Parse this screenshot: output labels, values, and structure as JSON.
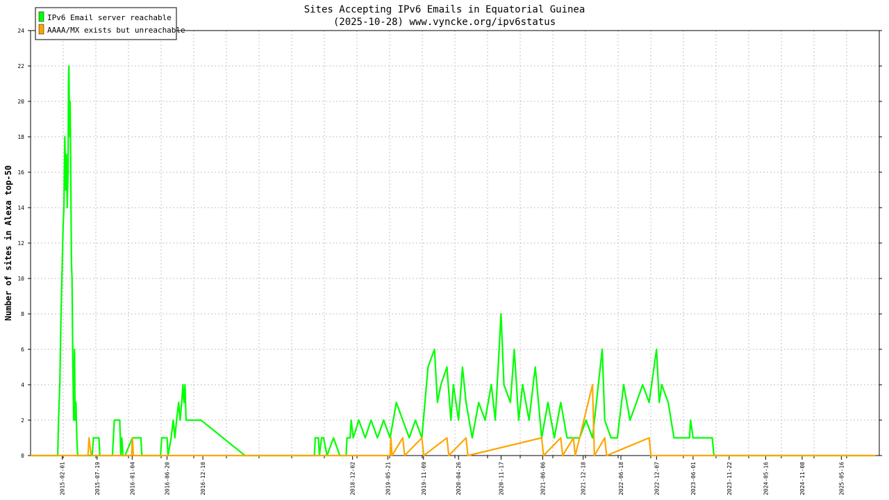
{
  "chart_data": {
    "type": "line",
    "title": "Sites Accepting IPv6 Emails in Equatorial Guinea",
    "subtitle": "(2025-10-28) www.vyncke.org/ipv6status",
    "ylabel": "Number of sites in Alexa top-50",
    "xlabel": "",
    "ylim": [
      0,
      24
    ],
    "yticks": [
      0,
      2,
      4,
      6,
      8,
      10,
      12,
      14,
      16,
      18,
      20,
      22,
      24
    ],
    "xlim": [
      "2014-09-01",
      "2025-11-15"
    ],
    "xtick_labels": [
      "2015-02-01",
      "2015-07-19",
      "2016-01-04",
      "2016-06-20",
      "2016-12-10",
      "2018-12-02",
      "2019-05-21",
      "2019-11-09",
      "2020-04-26",
      "2020-11-17",
      "2021-06-06",
      "2021-12-18",
      "2022-06-18",
      "2022-12-07",
      "2023-06-01",
      "2023-11-22",
      "2024-05-16",
      "2024-11-08",
      "2025-05-16"
    ],
    "grid": true,
    "legend_position": "top-left",
    "colors": {
      "reachable": "#00ff00",
      "unreachable": "#ffa500",
      "grid": "#c0c0c0"
    },
    "series": [
      {
        "name": "IPv6 Email server reachable",
        "color": "#00ff00",
        "points": [
          [
            "2014-09-01",
            0
          ],
          [
            "2015-01-10",
            0
          ],
          [
            "2015-01-14",
            2
          ],
          [
            "2015-01-20",
            4
          ],
          [
            "2015-01-26",
            8
          ],
          [
            "2015-02-01",
            11
          ],
          [
            "2015-02-05",
            13
          ],
          [
            "2015-02-09",
            14
          ],
          [
            "2015-02-13",
            18
          ],
          [
            "2015-02-17",
            15
          ],
          [
            "2015-02-21",
            17
          ],
          [
            "2015-02-25",
            14
          ],
          [
            "2015-03-01",
            16
          ],
          [
            "2015-03-03",
            21
          ],
          [
            "2015-03-05",
            22
          ],
          [
            "2015-03-08",
            18
          ],
          [
            "2015-03-11",
            20
          ],
          [
            "2015-03-14",
            16
          ],
          [
            "2015-03-17",
            11
          ],
          [
            "2015-03-20",
            10
          ],
          [
            "2015-03-24",
            5
          ],
          [
            "2015-03-28",
            2
          ],
          [
            "2015-04-01",
            6
          ],
          [
            "2015-04-04",
            2
          ],
          [
            "2015-04-08",
            3
          ],
          [
            "2015-04-12",
            1
          ],
          [
            "2015-04-16",
            0
          ],
          [
            "2015-06-25",
            0
          ],
          [
            "2015-07-01",
            1
          ],
          [
            "2015-07-28",
            1
          ],
          [
            "2015-08-01",
            0
          ],
          [
            "2015-10-01",
            0
          ],
          [
            "2015-10-10",
            2
          ],
          [
            "2015-11-05",
            2
          ],
          [
            "2015-11-10",
            0
          ],
          [
            "2015-11-15",
            1
          ],
          [
            "2015-11-20",
            0
          ],
          [
            "2015-12-01",
            0
          ],
          [
            "2016-01-05",
            1
          ],
          [
            "2016-02-15",
            1
          ],
          [
            "2016-02-20",
            0
          ],
          [
            "2016-05-20",
            0
          ],
          [
            "2016-05-25",
            1
          ],
          [
            "2016-06-20",
            1
          ],
          [
            "2016-06-25",
            0
          ],
          [
            "2016-07-10",
            1
          ],
          [
            "2016-07-20",
            2
          ],
          [
            "2016-07-28",
            1
          ],
          [
            "2016-08-05",
            2
          ],
          [
            "2016-08-15",
            3
          ],
          [
            "2016-08-22",
            2
          ],
          [
            "2016-08-30",
            3
          ],
          [
            "2016-09-05",
            4
          ],
          [
            "2016-09-10",
            3
          ],
          [
            "2016-09-15",
            4
          ],
          [
            "2016-09-20",
            2
          ],
          [
            "2016-12-01",
            2
          ],
          [
            "2017-07-01",
            0
          ],
          [
            "2018-06-01",
            0
          ],
          [
            "2018-06-05",
            1
          ],
          [
            "2018-06-20",
            1
          ],
          [
            "2018-06-25",
            0
          ],
          [
            "2018-07-05",
            1
          ],
          [
            "2018-07-15",
            1
          ],
          [
            "2018-08-01",
            0
          ],
          [
            "2018-09-01",
            1
          ],
          [
            "2018-10-01",
            0
          ],
          [
            "2018-11-01",
            0
          ],
          [
            "2018-11-05",
            1
          ],
          [
            "2018-11-20",
            1
          ],
          [
            "2018-11-25",
            2
          ],
          [
            "2018-12-05",
            1
          ],
          [
            "2019-01-01",
            2
          ],
          [
            "2019-02-01",
            1
          ],
          [
            "2019-03-01",
            2
          ],
          [
            "2019-04-01",
            1
          ],
          [
            "2019-05-01",
            2
          ],
          [
            "2019-06-01",
            1
          ],
          [
            "2019-07-01",
            3
          ],
          [
            "2019-08-01",
            2
          ],
          [
            "2019-09-01",
            1
          ],
          [
            "2019-10-01",
            2
          ],
          [
            "2019-11-01",
            1
          ],
          [
            "2019-12-01",
            5
          ],
          [
            "2020-01-01",
            6
          ],
          [
            "2020-01-15",
            3
          ],
          [
            "2020-02-01",
            4
          ],
          [
            "2020-03-01",
            5
          ],
          [
            "2020-03-20",
            2
          ],
          [
            "2020-04-01",
            4
          ],
          [
            "2020-04-26",
            2
          ],
          [
            "2020-05-15",
            5
          ],
          [
            "2020-06-01",
            3
          ],
          [
            "2020-07-01",
            1
          ],
          [
            "2020-08-01",
            3
          ],
          [
            "2020-09-01",
            2
          ],
          [
            "2020-10-01",
            4
          ],
          [
            "2020-10-20",
            2
          ],
          [
            "2020-11-17",
            8
          ],
          [
            "2020-12-01",
            4
          ],
          [
            "2021-01-01",
            3
          ],
          [
            "2021-01-20",
            6
          ],
          [
            "2021-02-10",
            2
          ],
          [
            "2021-03-01",
            4
          ],
          [
            "2021-04-01",
            2
          ],
          [
            "2021-05-01",
            5
          ],
          [
            "2021-06-01",
            1
          ],
          [
            "2021-07-01",
            3
          ],
          [
            "2021-08-01",
            1
          ],
          [
            "2021-09-01",
            3
          ],
          [
            "2021-10-01",
            1
          ],
          [
            "2021-11-01",
            1
          ],
          [
            "2021-12-01",
            1
          ],
          [
            "2022-01-01",
            2
          ],
          [
            "2022-02-01",
            1
          ],
          [
            "2022-03-01",
            4
          ],
          [
            "2022-03-20",
            6
          ],
          [
            "2022-04-01",
            2
          ],
          [
            "2022-05-01",
            1
          ],
          [
            "2022-06-01",
            1
          ],
          [
            "2022-07-01",
            4
          ],
          [
            "2022-08-01",
            2
          ],
          [
            "2022-09-01",
            3
          ],
          [
            "2022-10-01",
            4
          ],
          [
            "2022-11-01",
            3
          ],
          [
            "2022-12-07",
            6
          ],
          [
            "2022-12-20",
            3
          ],
          [
            "2023-01-01",
            4
          ],
          [
            "2023-02-01",
            3
          ],
          [
            "2023-03-01",
            1
          ],
          [
            "2023-05-15",
            1
          ],
          [
            "2023-05-20",
            2
          ],
          [
            "2023-06-01",
            1
          ],
          [
            "2023-09-01",
            1
          ],
          [
            "2023-09-10",
            0
          ],
          [
            "2025-10-28",
            0
          ]
        ]
      },
      {
        "name": "AAAA/MX exists but unreachable",
        "color": "#ffa500",
        "points": [
          [
            "2014-09-01",
            0
          ],
          [
            "2015-06-05",
            0
          ],
          [
            "2015-06-10",
            1
          ],
          [
            "2015-06-20",
            0
          ],
          [
            "2016-01-01",
            0
          ],
          [
            "2016-01-05",
            1
          ],
          [
            "2016-01-10",
            0
          ],
          [
            "2019-06-01",
            0
          ],
          [
            "2019-06-05",
            1
          ],
          [
            "2019-06-10",
            0
          ],
          [
            "2019-08-01",
            1
          ],
          [
            "2019-08-10",
            0
          ],
          [
            "2019-11-01",
            1
          ],
          [
            "2019-11-10",
            0
          ],
          [
            "2020-03-01",
            1
          ],
          [
            "2020-03-10",
            0
          ],
          [
            "2020-06-01",
            1
          ],
          [
            "2020-06-10",
            0
          ],
          [
            "2021-06-01",
            1
          ],
          [
            "2021-06-10",
            0
          ],
          [
            "2021-09-01",
            1
          ],
          [
            "2021-09-10",
            0
          ],
          [
            "2021-11-01",
            1
          ],
          [
            "2021-11-10",
            0
          ],
          [
            "2022-02-01",
            4
          ],
          [
            "2022-02-10",
            0
          ],
          [
            "2022-04-01",
            1
          ],
          [
            "2022-04-10",
            0
          ],
          [
            "2022-11-01",
            1
          ],
          [
            "2022-11-10",
            0
          ],
          [
            "2025-10-28",
            0
          ]
        ]
      }
    ]
  }
}
